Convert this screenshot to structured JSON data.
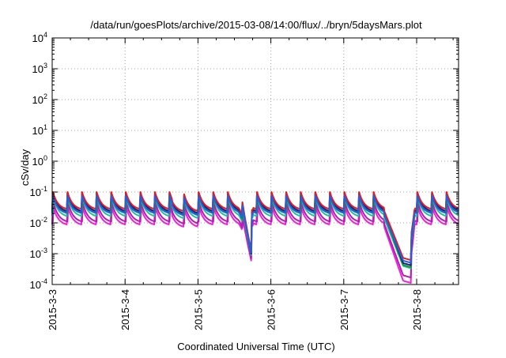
{
  "chart_data": {
    "type": "line",
    "title": "/data/run/goesPlots/archive/2015-03-08/14:00/flux/../bryn/5daysMars.plot",
    "xlabel": "Coordinated Universal Time (UTC)",
    "ylabel": "cSv/day",
    "yscale": "log",
    "ylim": [
      0.0001,
      10000
    ],
    "y_ticks": [
      {
        "base": "10",
        "exp": "-4"
      },
      {
        "base": "10",
        "exp": "-3"
      },
      {
        "base": "10",
        "exp": "-2"
      },
      {
        "base": "10",
        "exp": "-1"
      },
      {
        "base": "10",
        "exp": "0"
      },
      {
        "base": "10",
        "exp": "1"
      },
      {
        "base": "10",
        "exp": "2"
      },
      {
        "base": "10",
        "exp": "3"
      },
      {
        "base": "10",
        "exp": "4"
      }
    ],
    "xlim": [
      "2015-03-03",
      "2015-03-08 14:00"
    ],
    "x_ticks": [
      "2015-3-3",
      "2015-3-4",
      "2015-3-5",
      "2015-3-6",
      "2015-3-7",
      "2015-3-8"
    ],
    "grid": true,
    "legend": "none",
    "x_unit": "days",
    "series": [
      {
        "color": "#e8191b",
        "peak": 0.11,
        "base": 0.026,
        "dip1": 0.0012,
        "dip2": 0.0011
      },
      {
        "color": "#20208a",
        "peak": 0.1,
        "base": 0.022,
        "dip1": 0.001,
        "dip2": 0.00075
      },
      {
        "color": "#1a9a2e",
        "peak": 0.09,
        "base": 0.02,
        "dip1": 0.001,
        "dip2": 0.00065
      },
      {
        "color": "#2060e0",
        "peak": 0.085,
        "base": 0.019,
        "dip1": 0.0011,
        "dip2": 0.0009
      },
      {
        "color": "#20c0a0",
        "peak": 0.075,
        "base": 0.015,
        "dip1": 0.0009,
        "dip2": 0.0006
      },
      {
        "color": "#b020b0",
        "peak": 0.05,
        "base": 0.01,
        "dip1": 0.0007,
        "dip2": 0.0003
      },
      {
        "color": "#f020e0",
        "peak": 0.04,
        "base": 0.008,
        "dip1": 0.0006,
        "dip2": 0.0002
      }
    ]
  }
}
